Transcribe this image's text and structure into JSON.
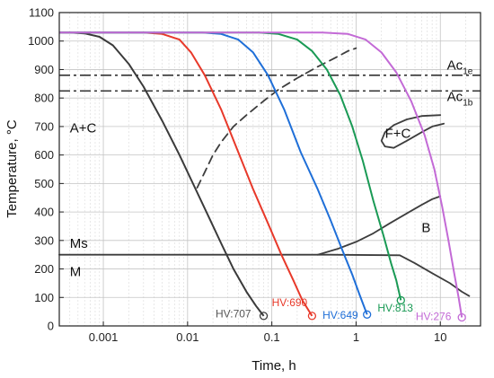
{
  "chart_data": {
    "type": "line",
    "title": "",
    "xlabel": "Time, h",
    "ylabel": "Temperature, °C",
    "xscale": "log",
    "xlim": [
      0.0003,
      30
    ],
    "ylim": [
      0,
      1100
    ],
    "x_ticks": [
      {
        "value": 0.001,
        "label": "0.001"
      },
      {
        "value": 0.01,
        "label": "0.01"
      },
      {
        "value": 0.1,
        "label": "0.1"
      },
      {
        "value": 1,
        "label": "1"
      },
      {
        "value": 10,
        "label": "10"
      }
    ],
    "y_ticks": [
      {
        "value": 0,
        "label": "0"
      },
      {
        "value": 100,
        "label": "100"
      },
      {
        "value": 200,
        "label": "200"
      },
      {
        "value": 300,
        "label": "300"
      },
      {
        "value": 400,
        "label": "400"
      },
      {
        "value": 500,
        "label": "500"
      },
      {
        "value": 600,
        "label": "600"
      },
      {
        "value": 700,
        "label": "700"
      },
      {
        "value": 800,
        "label": "800"
      },
      {
        "value": 900,
        "label": "900"
      },
      {
        "value": 1000,
        "label": "1000"
      },
      {
        "value": 1100,
        "label": "1100"
      }
    ],
    "grid": true,
    "cooling_curves": [
      {
        "color": "#3a3a3a",
        "hv_label": "HV:707",
        "points": [
          [
            0.0003,
            1030
          ],
          [
            0.0004,
            1030
          ],
          [
            0.0006,
            1027
          ],
          [
            0.0009,
            1015
          ],
          [
            0.0013,
            985
          ],
          [
            0.002,
            920
          ],
          [
            0.003,
            840
          ],
          [
            0.005,
            720
          ],
          [
            0.008,
            600
          ],
          [
            0.012,
            490
          ],
          [
            0.018,
            380
          ],
          [
            0.025,
            290
          ],
          [
            0.035,
            200
          ],
          [
            0.05,
            120
          ],
          [
            0.065,
            70
          ],
          [
            0.08,
            35
          ]
        ]
      },
      {
        "color": "#e8392a",
        "hv_label": "HV:690",
        "points": [
          [
            0.0003,
            1030
          ],
          [
            0.003,
            1030
          ],
          [
            0.005,
            1025
          ],
          [
            0.008,
            1005
          ],
          [
            0.011,
            960
          ],
          [
            0.016,
            880
          ],
          [
            0.025,
            760
          ],
          [
            0.04,
            610
          ],
          [
            0.06,
            480
          ],
          [
            0.09,
            360
          ],
          [
            0.13,
            250
          ],
          [
            0.18,
            160
          ],
          [
            0.23,
            90
          ],
          [
            0.3,
            35
          ]
        ]
      },
      {
        "color": "#1f6fd8",
        "hv_label": "HV:649",
        "points": [
          [
            0.0003,
            1030
          ],
          [
            0.015,
            1030
          ],
          [
            0.025,
            1025
          ],
          [
            0.04,
            1005
          ],
          [
            0.06,
            960
          ],
          [
            0.09,
            880
          ],
          [
            0.14,
            760
          ],
          [
            0.22,
            610
          ],
          [
            0.35,
            480
          ],
          [
            0.5,
            370
          ],
          [
            0.7,
            260
          ],
          [
            0.9,
            180
          ],
          [
            1.1,
            110
          ],
          [
            1.35,
            40
          ]
        ]
      },
      {
        "color": "#1a9a55",
        "hv_label": "HV:813",
        "points": [
          [
            0.0003,
            1030
          ],
          [
            0.07,
            1030
          ],
          [
            0.12,
            1025
          ],
          [
            0.2,
            1005
          ],
          [
            0.3,
            965
          ],
          [
            0.45,
            900
          ],
          [
            0.65,
            810
          ],
          [
            0.9,
            700
          ],
          [
            1.2,
            580
          ],
          [
            1.6,
            440
          ],
          [
            2.1,
            320
          ],
          [
            2.6,
            220
          ],
          [
            3.0,
            160
          ],
          [
            3.4,
            90
          ]
        ]
      },
      {
        "color": "#c36ad6",
        "hv_label": "HV:276",
        "points": [
          [
            0.0003,
            1030
          ],
          [
            0.4,
            1030
          ],
          [
            0.8,
            1025
          ],
          [
            1.3,
            1005
          ],
          [
            2.0,
            960
          ],
          [
            3.0,
            890
          ],
          [
            4.5,
            790
          ],
          [
            6.5,
            670
          ],
          [
            8.5,
            550
          ],
          [
            10.5,
            420
          ],
          [
            12.5,
            300
          ],
          [
            14.5,
            190
          ],
          [
            16.5,
            100
          ],
          [
            18,
            30
          ]
        ]
      }
    ],
    "transformation_lines": [
      {
        "style": "dashed",
        "points": [
          [
            0.013,
            485
          ],
          [
            0.016,
            540
          ],
          [
            0.02,
            600
          ],
          [
            0.025,
            645
          ],
          [
            0.035,
            700
          ],
          [
            0.05,
            740
          ],
          [
            0.08,
            790
          ],
          [
            0.12,
            830
          ],
          [
            0.2,
            870
          ],
          [
            0.35,
            910
          ],
          [
            0.6,
            945
          ],
          [
            0.8,
            965
          ],
          [
            1.0,
            975
          ]
        ]
      },
      {
        "style": "solid",
        "points": [
          [
            10,
            740
          ],
          [
            6,
            737
          ],
          [
            4,
            725
          ],
          [
            2.8,
            705
          ],
          [
            2.2,
            680
          ],
          [
            2.0,
            650
          ],
          [
            2.2,
            630
          ],
          [
            2.8,
            625
          ],
          [
            4,
            650
          ],
          [
            6,
            680
          ],
          [
            8,
            700
          ],
          [
            11,
            710
          ]
        ]
      },
      {
        "style": "solid",
        "points": [
          [
            0.35,
            250
          ],
          [
            0.6,
            270
          ],
          [
            1.0,
            295
          ],
          [
            1.6,
            325
          ],
          [
            2.5,
            360
          ],
          [
            4,
            395
          ],
          [
            6,
            425
          ],
          [
            8,
            445
          ],
          [
            10,
            455
          ]
        ]
      },
      {
        "style": "solid",
        "points": [
          [
            0.0003,
            250
          ],
          [
            0.5,
            250
          ],
          [
            3.3,
            248
          ],
          [
            5,
            220
          ],
          [
            8,
            185
          ],
          [
            13,
            150
          ],
          [
            18,
            120
          ],
          [
            22,
            105
          ]
        ]
      }
    ],
    "reference_lines": [
      {
        "label": "Ac1e",
        "value": 880,
        "style": "dash-dot"
      },
      {
        "label": "Ac1b",
        "value": 825,
        "style": "dash-dot"
      }
    ],
    "annotations": [
      {
        "key": "ac1e",
        "main": "Ac",
        "sub": "1e",
        "x": 12,
        "y": 900
      },
      {
        "key": "ac1b",
        "main": "Ac",
        "sub": "1b",
        "x": 12,
        "y": 790
      },
      {
        "key": "ac",
        "text": "A+C",
        "x": 0.0004,
        "y": 680
      },
      {
        "key": "fc",
        "text": "F+C",
        "x": 2.2,
        "y": 660
      },
      {
        "key": "b",
        "text": "B",
        "x": 6,
        "y": 330
      },
      {
        "key": "ms",
        "text": "Ms",
        "x": 0.0004,
        "y": 275
      },
      {
        "key": "m",
        "text": "M",
        "x": 0.0004,
        "y": 175
      }
    ],
    "hv_labels": [
      {
        "text": "HV:707",
        "color": "#555555",
        "x": 0.0215,
        "y": 30
      },
      {
        "text": "HV:690",
        "color": "#e8392a",
        "x": 0.1,
        "y": 70
      },
      {
        "text": "HV:649",
        "color": "#1f6fd8",
        "x": 0.4,
        "y": 25
      },
      {
        "text": "HV:813",
        "color": "#1a9a55",
        "x": 1.8,
        "y": 50
      },
      {
        "text": "HV:276",
        "color": "#c36ad6",
        "x": 5.1,
        "y": 20
      }
    ]
  }
}
